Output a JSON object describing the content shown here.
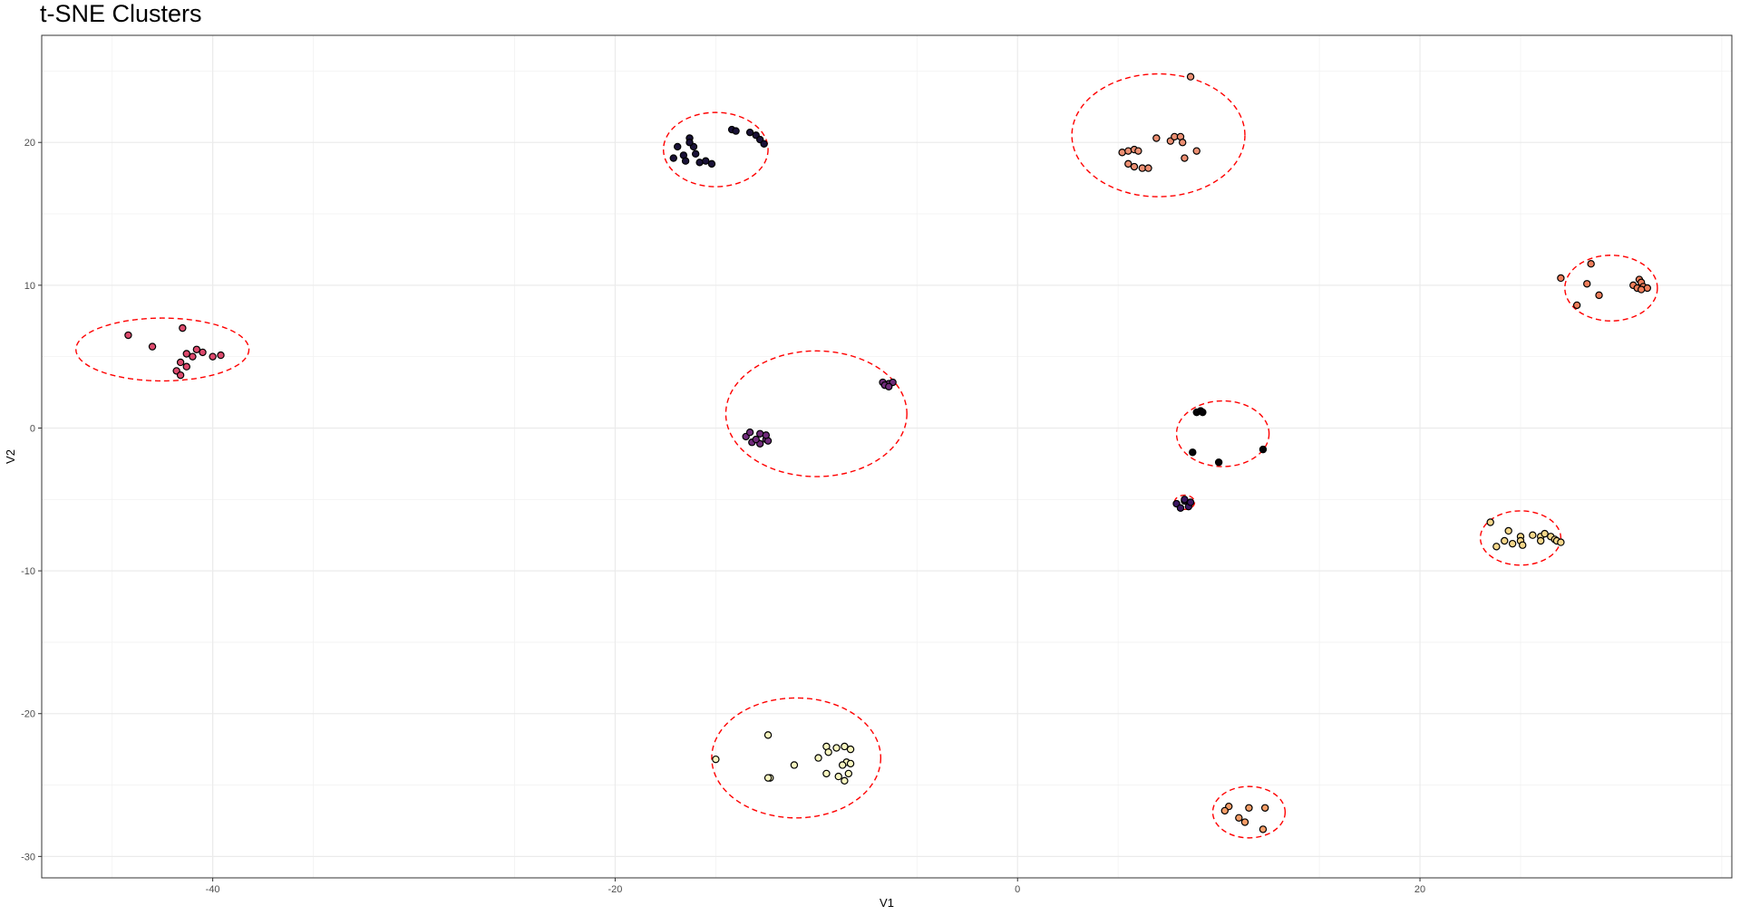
{
  "chart_data": {
    "type": "scatter",
    "title": "t-SNE Clusters",
    "xlabel": "V1",
    "ylabel": "V2",
    "xlim": [
      -48.5,
      35.5
    ],
    "ylim": [
      -31.5,
      27.5
    ],
    "x_ticks": [
      -40,
      -20,
      0,
      20
    ],
    "y_ticks": [
      -30,
      -20,
      -10,
      0,
      10,
      20
    ],
    "grid": true,
    "legend": "none",
    "ellipse_color": "#ff0000",
    "point_outline": "#000000",
    "clusters": [
      {
        "color": "#dd4a6d",
        "ellipse": {
          "cx": -42.5,
          "cy": 5.5,
          "rx": 4.3,
          "ry": 2.2
        },
        "points": [
          [
            -44.2,
            6.5
          ],
          [
            -43.0,
            5.7
          ],
          [
            -41.5,
            7.0
          ],
          [
            -41.3,
            5.2
          ],
          [
            -40.8,
            5.5
          ],
          [
            -40.5,
            5.3
          ],
          [
            -41.0,
            5.0
          ],
          [
            -41.3,
            4.3
          ],
          [
            -41.6,
            4.6
          ],
          [
            -41.8,
            4.0
          ],
          [
            -41.6,
            3.7
          ],
          [
            -40.0,
            5.0
          ],
          [
            -39.6,
            5.1
          ]
        ]
      },
      {
        "color": "#1a1238",
        "ellipse": {
          "cx": -15.0,
          "cy": 19.5,
          "rx": 2.6,
          "ry": 2.6
        },
        "points": [
          [
            -16.9,
            19.7
          ],
          [
            -16.6,
            19.1
          ],
          [
            -16.3,
            20.3
          ],
          [
            -16.1,
            19.7
          ],
          [
            -16.5,
            18.7
          ],
          [
            -16.0,
            19.2
          ],
          [
            -15.8,
            18.6
          ],
          [
            -15.5,
            18.7
          ],
          [
            -15.2,
            18.5
          ],
          [
            -17.1,
            18.9
          ],
          [
            -16.3,
            20.0
          ],
          [
            -14.2,
            20.9
          ],
          [
            -14.0,
            20.8
          ],
          [
            -13.3,
            20.7
          ],
          [
            -13.0,
            20.5
          ],
          [
            -12.8,
            20.2
          ],
          [
            -12.6,
            19.9
          ]
        ]
      },
      {
        "color": "#6f2a7a",
        "ellipse": {
          "cx": -10.0,
          "cy": 1.0,
          "rx": 4.5,
          "ry": 4.4
        },
        "points": [
          [
            -13.5,
            -0.6
          ],
          [
            -13.2,
            -1.0
          ],
          [
            -12.8,
            -1.1
          ],
          [
            -12.5,
            -0.8
          ],
          [
            -13.3,
            -0.3
          ],
          [
            -12.8,
            -0.4
          ],
          [
            -12.4,
            -0.9
          ],
          [
            -12.5,
            -0.5
          ],
          [
            -13.0,
            -0.8
          ],
          [
            -6.7,
            3.2
          ],
          [
            -6.4,
            3.1
          ],
          [
            -6.2,
            3.2
          ],
          [
            -6.6,
            3.0
          ],
          [
            -6.4,
            2.9
          ]
        ]
      },
      {
        "color": "#ec8f72",
        "ellipse": {
          "cx": 7.0,
          "cy": 20.5,
          "rx": 4.3,
          "ry": 4.3
        },
        "points": [
          [
            8.6,
            24.6
          ],
          [
            5.2,
            19.3
          ],
          [
            5.5,
            19.4
          ],
          [
            5.8,
            19.5
          ],
          [
            6.0,
            19.4
          ],
          [
            5.5,
            18.5
          ],
          [
            5.8,
            18.3
          ],
          [
            6.2,
            18.2
          ],
          [
            6.5,
            18.2
          ],
          [
            6.9,
            20.3
          ],
          [
            7.6,
            20.1
          ],
          [
            7.8,
            20.4
          ],
          [
            8.1,
            20.4
          ],
          [
            8.2,
            20.0
          ],
          [
            8.3,
            18.9
          ],
          [
            8.9,
            19.4
          ]
        ]
      },
      {
        "color": "#050307",
        "ellipse": {
          "cx": 10.2,
          "cy": -0.4,
          "rx": 2.3,
          "ry": 2.3
        },
        "points": [
          [
            8.9,
            1.1
          ],
          [
            9.1,
            1.2
          ],
          [
            9.2,
            1.1
          ],
          [
            8.7,
            -1.7
          ],
          [
            10.0,
            -2.4
          ],
          [
            12.2,
            -1.5
          ]
        ]
      },
      {
        "color": "#3c1763",
        "ellipse": {
          "cx": 8.3,
          "cy": -5.2,
          "rx": 0.5,
          "ry": 0.5
        },
        "points": [
          [
            7.9,
            -5.3
          ],
          [
            8.3,
            -5.1
          ],
          [
            8.5,
            -5.5
          ],
          [
            8.1,
            -5.6
          ],
          [
            8.6,
            -5.2
          ],
          [
            8.3,
            -5.0
          ]
        ]
      },
      {
        "color": "#f07e5b",
        "ellipse": {
          "cx": 29.5,
          "cy": 9.8,
          "rx": 2.3,
          "ry": 2.3
        },
        "points": [
          [
            27.0,
            10.5
          ],
          [
            28.5,
            11.5
          ],
          [
            28.3,
            10.1
          ],
          [
            28.9,
            9.3
          ],
          [
            27.8,
            8.6
          ],
          [
            30.6,
            10.0
          ],
          [
            30.8,
            9.8
          ],
          [
            30.9,
            10.4
          ],
          [
            31.0,
            10.2
          ],
          [
            31.1,
            9.9
          ],
          [
            31.3,
            9.8
          ],
          [
            31.0,
            9.7
          ]
        ]
      },
      {
        "color": "#f5d78a",
        "ellipse": {
          "cx": 25.0,
          "cy": -7.7,
          "rx": 2.0,
          "ry": 1.9
        },
        "points": [
          [
            23.5,
            -6.6
          ],
          [
            23.8,
            -8.3
          ],
          [
            24.2,
            -7.9
          ],
          [
            24.6,
            -8.1
          ],
          [
            25.0,
            -7.6
          ],
          [
            25.0,
            -7.9
          ],
          [
            25.1,
            -8.2
          ],
          [
            25.6,
            -7.5
          ],
          [
            26.0,
            -7.6
          ],
          [
            26.2,
            -7.4
          ],
          [
            26.5,
            -7.6
          ],
          [
            26.7,
            -7.8
          ],
          [
            26.8,
            -7.9
          ],
          [
            26.0,
            -7.9
          ],
          [
            27.0,
            -8.0
          ],
          [
            24.4,
            -7.2
          ]
        ]
      },
      {
        "color": "#f8f6bf",
        "ellipse": {
          "cx": -11.0,
          "cy": -23.1,
          "rx": 4.2,
          "ry": 4.2
        },
        "points": [
          [
            -15.0,
            -23.2
          ],
          [
            -12.4,
            -21.5
          ],
          [
            -12.3,
            -24.5
          ],
          [
            -11.1,
            -23.6
          ],
          [
            -9.9,
            -23.1
          ],
          [
            -9.5,
            -22.3
          ],
          [
            -9.4,
            -22.7
          ],
          [
            -9.0,
            -22.4
          ],
          [
            -8.6,
            -22.3
          ],
          [
            -8.3,
            -22.5
          ],
          [
            -8.5,
            -23.4
          ],
          [
            -8.7,
            -23.6
          ],
          [
            -8.3,
            -23.5
          ],
          [
            -9.5,
            -24.2
          ],
          [
            -8.9,
            -24.4
          ],
          [
            -8.6,
            -24.7
          ],
          [
            -8.4,
            -24.2
          ],
          [
            -12.4,
            -24.5
          ]
        ]
      },
      {
        "color": "#f59d67",
        "ellipse": {
          "cx": 11.5,
          "cy": -26.9,
          "rx": 1.8,
          "ry": 1.8
        },
        "points": [
          [
            10.5,
            -26.5
          ],
          [
            10.3,
            -26.8
          ],
          [
            11.0,
            -27.3
          ],
          [
            11.3,
            -27.6
          ],
          [
            11.5,
            -26.6
          ],
          [
            12.3,
            -26.6
          ],
          [
            12.2,
            -28.1
          ]
        ]
      }
    ]
  }
}
